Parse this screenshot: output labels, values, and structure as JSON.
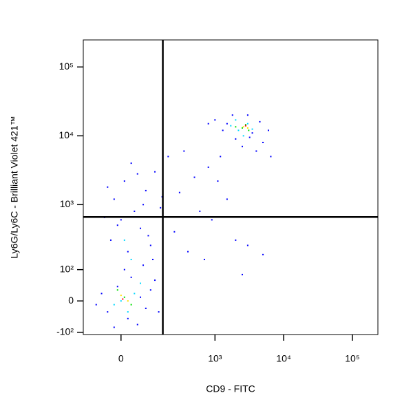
{
  "chart_data": {
    "type": "scatter",
    "x_label": "CD9 - FITC",
    "y_label": "Ly6G/Ly6C - Brilliant Violet 421™",
    "xscale": "biexponential",
    "yscale": "biexponential",
    "xlim": [
      -140,
      235000
    ],
    "ylim": [
      -110,
      247000
    ],
    "xticks": [
      0,
      {
        "value": 1000,
        "label": "10³"
      },
      {
        "value": 10000,
        "label": "10⁴"
      },
      {
        "value": 100000,
        "label": "10⁵"
      }
    ],
    "yticks": [
      {
        "value": -100,
        "label": "-10²"
      },
      0,
      {
        "value": 100,
        "label": "10²"
      },
      {
        "value": 1000,
        "label": "10³"
      },
      {
        "value": 10000,
        "label": "10⁴"
      },
      {
        "value": 100000,
        "label": "10⁵"
      }
    ],
    "quadrant_lines": {
      "x": 164,
      "y": 660
    },
    "series": [
      {
        "color": "#0000ff",
        "x": [
          -40,
          20,
          60,
          -10,
          80,
          -60,
          30,
          100,
          -20,
          50,
          120,
          -80,
          10,
          140,
          70,
          20,
          -30,
          60,
          100,
          0,
          40,
          -20,
          80,
          10,
          120,
          -40,
          150,
          30,
          90,
          -10,
          70,
          110,
          50,
          160,
          -50,
          300,
          500,
          250,
          800,
          1200,
          600,
          2000,
          400,
          1500,
          900,
          3000,
          700,
          2500,
          1100,
          350,
          200,
          5000,
          1500,
          2000,
          3500,
          4500,
          1000,
          6000,
          2500,
          3000,
          800,
          5000,
          1800,
          4000,
          6500,
          1300,
          3200
        ],
        "values": [
          -30,
          -50,
          10,
          40,
          -20,
          20,
          70,
          30,
          -80,
          -70,
          60,
          -10,
          100,
          -30,
          120,
          200,
          300,
          450,
          250,
          600,
          800,
          1200,
          1600,
          2200,
          3000,
          1800,
          900,
          4000,
          350,
          500,
          1000,
          150,
          2800,
          1300,
          650,
          1500,
          2500,
          400,
          3500,
          5000,
          800,
          300,
          200,
          1200,
          600,
          250,
          150,
          80,
          2200,
          6000,
          5000,
          180,
          15000,
          9000,
          11000,
          16000,
          17000,
          12000,
          7000,
          20000,
          15000,
          8000,
          20000,
          6000,
          5000,
          12000,
          9500
        ]
      },
      {
        "color": "#00d8ff",
        "x": [
          0,
          40,
          -20,
          20,
          60,
          30,
          10,
          2200,
          3000,
          2000,
          3500,
          2600,
          1700
        ],
        "values": [
          0,
          20,
          -10,
          -30,
          50,
          150,
          300,
          12000,
          15000,
          17000,
          12500,
          10000,
          14000
        ]
      },
      {
        "color": "#00e000",
        "x": [
          10,
          -10,
          30,
          2500,
          2800,
          2000,
          3100
        ],
        "values": [
          10,
          30,
          -10,
          13000,
          14500,
          13500,
          12000
        ]
      },
      {
        "color": "#ffe000",
        "x": [
          0,
          20,
          2600,
          3000
        ],
        "values": [
          15,
          0,
          13500,
          13000
        ]
      },
      {
        "color": "#ff0000",
        "x": [
          5,
          2800
        ],
        "values": [
          5,
          14000
        ]
      }
    ]
  }
}
